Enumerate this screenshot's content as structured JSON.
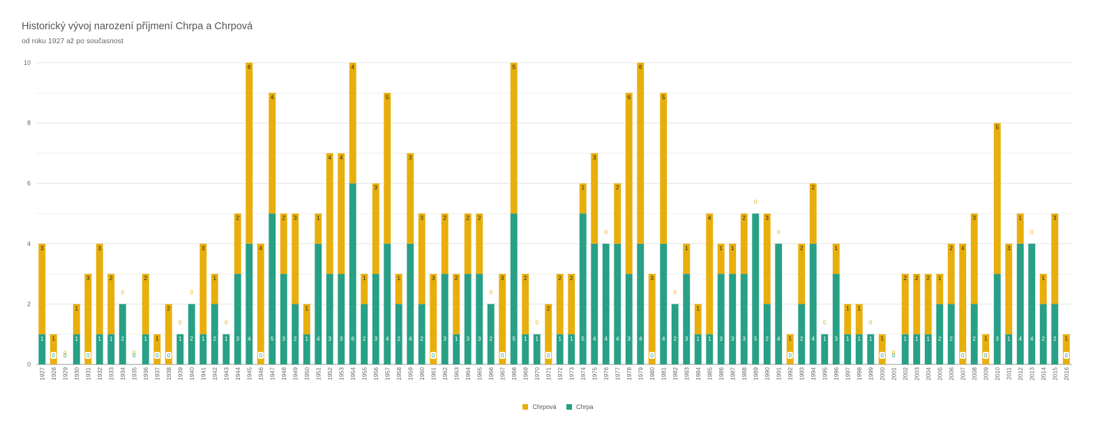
{
  "title": "Historický vývoj narození příjmení Chrpa a Chrpová",
  "subtitle": "od roku 1927 až po současnost",
  "colors": {
    "chrpa": "#27a085",
    "chrpova": "#e8ae0b",
    "grid": "#e3e3e3",
    "axis": "#666666"
  },
  "legend": {
    "series0": "Chrpová",
    "series1": "Chrpa"
  },
  "chart_data": {
    "type": "bar",
    "stacked": true,
    "categories": [
      "1927",
      "1928",
      "1929",
      "1930",
      "1931",
      "1932",
      "1933",
      "1934",
      "1935",
      "1936",
      "1937",
      "1938",
      "1939",
      "1940",
      "1941",
      "1942",
      "1943",
      "1944",
      "1945",
      "1946",
      "1947",
      "1948",
      "1949",
      "1950",
      "1951",
      "1952",
      "1953",
      "1954",
      "1955",
      "1956",
      "1957",
      "1958",
      "1959",
      "1960",
      "1961",
      "1962",
      "1963",
      "1964",
      "1965",
      "1966",
      "1967",
      "1968",
      "1969",
      "1970",
      "1971",
      "1972",
      "1973",
      "1974",
      "1975",
      "1976",
      "1977",
      "1978",
      "1979",
      "1980",
      "1981",
      "1982",
      "1983",
      "1984",
      "1985",
      "1986",
      "1987",
      "1988",
      "1989",
      "1990",
      "1991",
      "1992",
      "1993",
      "1994",
      "1995",
      "1996",
      "1997",
      "1998",
      "1999",
      "2000",
      "2001",
      "2002",
      "2003",
      "2004",
      "2005",
      "2006",
      "2007",
      "2008",
      "2009",
      "2010",
      "2011",
      "2012",
      "2013",
      "2014",
      "2015",
      "2016"
    ],
    "series": [
      {
        "name": "Chrpa",
        "values": [
          1,
          0,
          0,
          1,
          0,
          1,
          1,
          2,
          0,
          1,
          0,
          0,
          1,
          2,
          1,
          2,
          1,
          3,
          4,
          0,
          5,
          3,
          2,
          1,
          4,
          3,
          3,
          6,
          2,
          3,
          4,
          2,
          4,
          2,
          0,
          3,
          1,
          3,
          3,
          2,
          0,
          5,
          1,
          1,
          0,
          1,
          1,
          5,
          4,
          4,
          4,
          3,
          4,
          0,
          4,
          2,
          3,
          1,
          1,
          3,
          3,
          3,
          5,
          2,
          4,
          0,
          2,
          4,
          1,
          3,
          1,
          1,
          1,
          0,
          0,
          1,
          1,
          1,
          2,
          2,
          0,
          2,
          0,
          3,
          1,
          4,
          4,
          2,
          2,
          0
        ]
      },
      {
        "name": "Chrpová",
        "values": [
          3,
          1,
          0,
          1,
          3,
          3,
          2,
          0,
          0,
          2,
          1,
          2,
          0,
          0,
          3,
          1,
          0,
          2,
          6,
          4,
          4,
          2,
          3,
          1,
          1,
          4,
          4,
          4,
          1,
          3,
          5,
          1,
          3,
          3,
          3,
          2,
          2,
          2,
          2,
          0,
          3,
          5,
          2,
          0,
          2,
          2,
          2,
          1,
          3,
          0,
          2,
          6,
          6,
          3,
          5,
          0,
          1,
          1,
          4,
          1,
          1,
          2,
          0,
          3,
          0,
          1,
          2,
          2,
          0,
          1,
          1,
          1,
          0,
          1,
          0,
          2,
          2,
          2,
          1,
          2,
          4,
          3,
          1,
          5,
          3,
          1,
          0,
          1,
          3,
          1
        ]
      }
    ],
    "yticks": [
      "0",
      "2",
      "4",
      "6",
      "8",
      "10"
    ],
    "ylim": [
      0,
      10
    ],
    "grid": true,
    "legend_position": "bottom",
    "data_labels": true
  }
}
